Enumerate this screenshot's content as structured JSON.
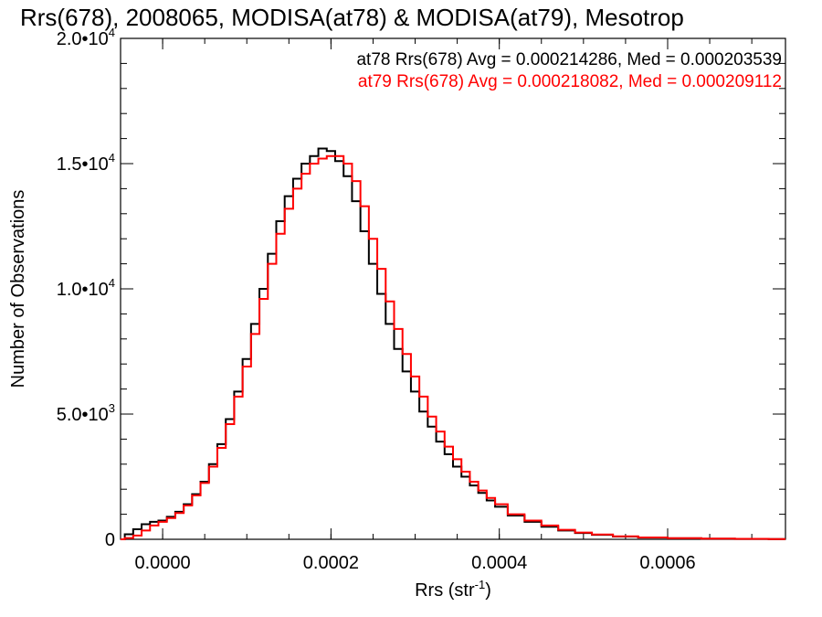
{
  "chart_data": {
    "type": "line",
    "title": "Rrs(678), 2008065, MODISA(at78) & MODISA(at79), Mesotrop",
    "xlabel": "Rrs (str",
    "xlabel_sup": "-1",
    "xlabel_close": ")",
    "ylabel": "Number of Observations",
    "xlim": [
      -5e-05,
      0.00074
    ],
    "ylim": [
      0,
      20000
    ],
    "x_ticks": [
      {
        "value": 0.0,
        "label": "0.0000"
      },
      {
        "value": 0.0002,
        "label": "0.0002"
      },
      {
        "value": 0.0004,
        "label": "0.0004"
      },
      {
        "value": 0.0006,
        "label": "0.0006"
      }
    ],
    "y_ticks": [
      {
        "value": 0,
        "label": "0",
        "sup": ""
      },
      {
        "value": 5000,
        "label": "5.0•10",
        "sup": "3"
      },
      {
        "value": 10000,
        "label": "1.0•10",
        "sup": "4"
      },
      {
        "value": 15000,
        "label": "1.5•10",
        "sup": "4"
      },
      {
        "value": 20000,
        "label": "2.0•10",
        "sup": "4"
      }
    ],
    "legend_placement": "top-right",
    "series": [
      {
        "name": "at78",
        "color": "#000000",
        "legend": "at78 Rrs(678) Avg = 0.000214286, Med = 0.000203539",
        "x": [
          -5e-05,
          -4e-05,
          -3e-05,
          -2e-05,
          -1e-05,
          0.0,
          1e-05,
          2e-05,
          3e-05,
          4e-05,
          5e-05,
          6e-05,
          7e-05,
          8e-05,
          9e-05,
          0.0001,
          0.00011,
          0.00012,
          0.00013,
          0.00014,
          0.00015,
          0.00016,
          0.00017,
          0.00018,
          0.00019,
          0.0002,
          0.00021,
          0.00022,
          0.00023,
          0.00024,
          0.00025,
          0.00026,
          0.00027,
          0.00028,
          0.00029,
          0.0003,
          0.00031,
          0.00032,
          0.00033,
          0.00034,
          0.00035,
          0.00036,
          0.00037,
          0.00038,
          0.00039,
          0.0004,
          0.00042,
          0.00044,
          0.00046,
          0.00048,
          0.0005,
          0.00052,
          0.00055,
          0.00058,
          0.00062,
          0.00066,
          0.0007,
          0.00074
        ],
        "y": [
          0,
          200,
          400,
          600,
          700,
          750,
          900,
          1100,
          1400,
          1800,
          2300,
          3000,
          3800,
          4800,
          5900,
          7200,
          8600,
          10000,
          11400,
          12700,
          13700,
          14400,
          15000,
          15300,
          15600,
          15500,
          15100,
          14500,
          13500,
          12300,
          11000,
          9800,
          8600,
          7600,
          6700,
          5900,
          5100,
          4500,
          3900,
          3400,
          2900,
          2500,
          2150,
          1850,
          1550,
          1300,
          950,
          700,
          500,
          350,
          250,
          180,
          110,
          70,
          40,
          25,
          15,
          10
        ]
      },
      {
        "name": "at79",
        "color": "#ff0000",
        "legend": "at79 Rrs(678) Avg = 0.000218082, Med = 0.000209112",
        "x": [
          -5e-05,
          -4e-05,
          -3e-05,
          -2e-05,
          -1e-05,
          0.0,
          1e-05,
          2e-05,
          3e-05,
          4e-05,
          5e-05,
          6e-05,
          7e-05,
          8e-05,
          9e-05,
          0.0001,
          0.00011,
          0.00012,
          0.00013,
          0.00014,
          0.00015,
          0.00016,
          0.00017,
          0.00018,
          0.00019,
          0.0002,
          0.00021,
          0.00022,
          0.00023,
          0.00024,
          0.00025,
          0.00026,
          0.00027,
          0.00028,
          0.00029,
          0.0003,
          0.00031,
          0.00032,
          0.00033,
          0.00034,
          0.00035,
          0.00036,
          0.00037,
          0.00038,
          0.00039,
          0.0004,
          0.00042,
          0.00044,
          0.00046,
          0.00048,
          0.0005,
          0.00052,
          0.00055,
          0.00058,
          0.00062,
          0.00066,
          0.0007,
          0.00074
        ],
        "y": [
          0,
          50,
          150,
          350,
          550,
          700,
          850,
          1050,
          1350,
          1750,
          2250,
          2900,
          3650,
          4600,
          5700,
          6900,
          8200,
          9600,
          11000,
          12200,
          13200,
          14000,
          14600,
          15000,
          15200,
          15300,
          15300,
          15000,
          14300,
          13300,
          12000,
          10800,
          9500,
          8400,
          7400,
          6500,
          5700,
          4900,
          4300,
          3700,
          3200,
          2700,
          2300,
          1950,
          1650,
          1400,
          1000,
          750,
          550,
          380,
          270,
          190,
          120,
          75,
          45,
          28,
          16,
          10
        ]
      }
    ]
  }
}
